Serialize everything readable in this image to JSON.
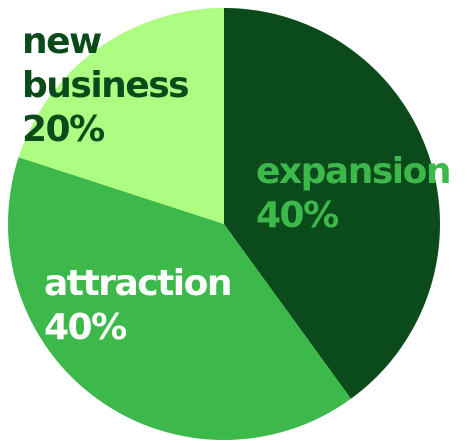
{
  "chart_data": {
    "type": "pie",
    "title": "",
    "slices": [
      {
        "name": "expansion",
        "value": 40,
        "percent_label": "40%",
        "color": "#0a4a1b",
        "label_color": "#3cb94a"
      },
      {
        "name": "attraction",
        "value": 40,
        "percent_label": "40%",
        "color": "#3cb94a",
        "label_color": "#ffffff"
      },
      {
        "name_lines": [
          "new",
          "business"
        ],
        "value": 20,
        "percent_label": "20%",
        "color": "#adfd82",
        "label_color": "#0a4a1b"
      }
    ]
  }
}
